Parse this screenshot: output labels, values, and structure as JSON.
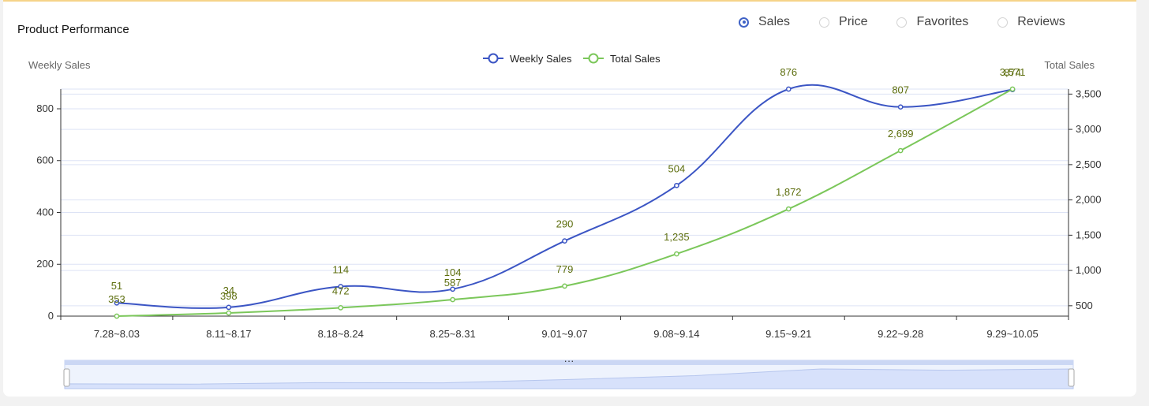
{
  "header": {
    "title": "Product Performance"
  },
  "metric_options": [
    {
      "label": "Sales",
      "checked": true
    },
    {
      "label": "Price",
      "checked": false
    },
    {
      "label": "Favorites",
      "checked": false
    },
    {
      "label": "Reviews",
      "checked": false
    }
  ],
  "colors": {
    "weekly": "#3b55c4",
    "total": "#7bc75a",
    "label": "#5d6e0e",
    "grid": "#dde3f5",
    "slider_fill": "#d7e1fb",
    "accent_border": "#f6d389"
  },
  "chart_data": {
    "type": "line",
    "categories": [
      "7.28~8.03",
      "8.11~8.17",
      "8.18~8.24",
      "8.25~8.31",
      "9.01~9.07",
      "9.08~9.14",
      "9.15~9.21",
      "9.22~9.28",
      "9.29~10.05"
    ],
    "series": [
      {
        "name": "Weekly Sales",
        "axis": "left",
        "values": [
          51,
          34,
          114,
          104,
          290,
          504,
          876,
          807,
          874
        ],
        "labels": [
          "51",
          "34",
          "114",
          "104",
          "290",
          "504",
          "876",
          "807",
          "874"
        ],
        "smooth": true
      },
      {
        "name": "Total Sales",
        "axis": "right",
        "values": [
          353,
          398,
          472,
          587,
          779,
          1235,
          1872,
          2699,
          3571
        ],
        "labels": [
          "353",
          "398",
          "472",
          "587",
          "779",
          "1,235",
          "1,872",
          "2,699",
          "3,571"
        ],
        "smooth": false
      }
    ],
    "y_left": {
      "name": "Weekly Sales",
      "ticks": [
        0,
        200,
        400,
        600,
        800
      ],
      "tick_labels": [
        "0",
        "200",
        "400",
        "600",
        "800"
      ],
      "range": [
        0,
        876
      ]
    },
    "y_right": {
      "name": "Total Sales",
      "ticks": [
        500,
        1000,
        1500,
        2000,
        2500,
        3000,
        3500
      ],
      "tick_labels": [
        "500",
        "1,000",
        "1,500",
        "2,000",
        "2,500",
        "3,000",
        "3,500"
      ],
      "range": [
        353,
        3571
      ]
    },
    "legend": "top-center",
    "grid": true,
    "data_zoom": {
      "start": 0,
      "end": 100
    }
  }
}
